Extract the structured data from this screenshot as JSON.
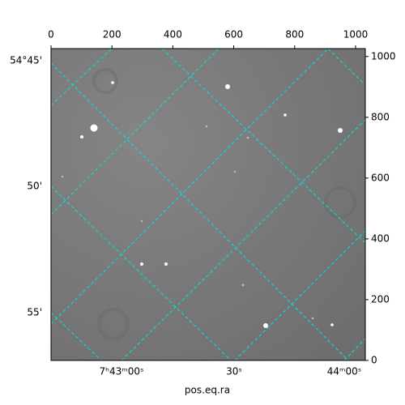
{
  "chart_data": {
    "type": "image",
    "xlabel": "pos.eq.ra",
    "xlim": [
      0,
      1032
    ],
    "xticks": [
      0,
      200,
      400,
      600,
      800,
      1000
    ],
    "ylim": [
      0,
      1026
    ],
    "yticks": [
      0,
      200,
      400,
      600,
      800,
      1000
    ],
    "ra_ticks": [
      "7ʰ43ᵐ00ˢ",
      "30ˢ",
      "44ᵐ00ˢ"
    ],
    "dec_ticks": [
      "54°45'",
      "50'",
      "55'"
    ]
  }
}
